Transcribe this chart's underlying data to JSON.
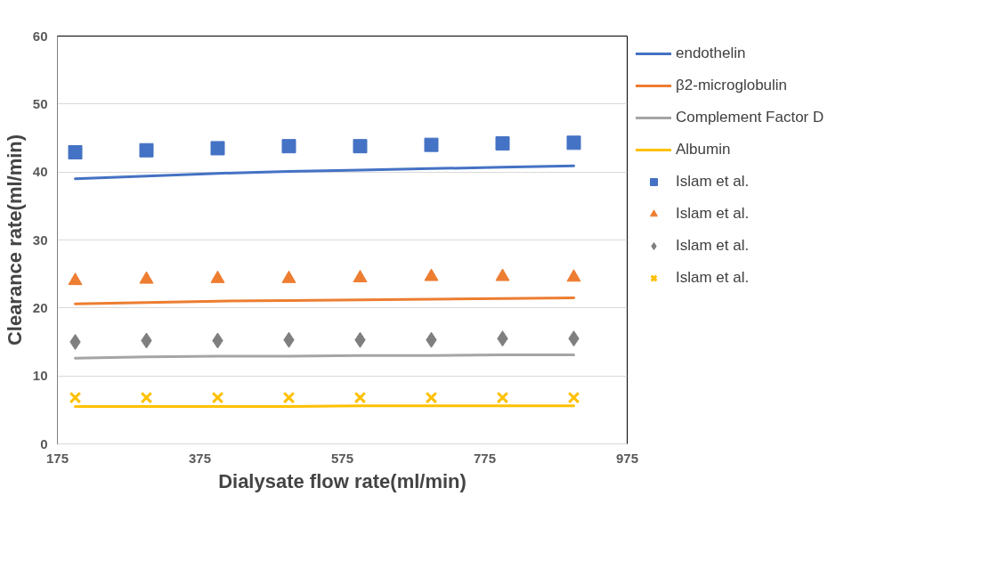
{
  "chart_data": {
    "type": "line",
    "xlabel": "Dialysate flow rate(ml/min)",
    "ylabel": "Clearance rate(ml/min)",
    "x": [
      200,
      300,
      400,
      500,
      600,
      700,
      800,
      900
    ],
    "xlim": [
      175,
      975
    ],
    "xticks": [
      175,
      375,
      575,
      775,
      975
    ],
    "ylim": [
      0,
      60
    ],
    "yticks": [
      0,
      10,
      20,
      30,
      40,
      50,
      60
    ],
    "grid": "y",
    "legend": "right",
    "marker": "none",
    "line_style": "solid",
    "series": [
      {
        "name": "endothelin",
        "color": "#4472c4",
        "values": [
          39.0,
          39.4,
          39.8,
          40.1,
          40.3,
          40.5,
          40.7,
          40.9
        ]
      },
      {
        "name": "β2-microglobulin",
        "color": "#ed7d31",
        "values": [
          20.6,
          20.8,
          21.0,
          21.1,
          21.2,
          21.3,
          21.4,
          21.5
        ]
      },
      {
        "name": "Complement Factor D",
        "color": "#a5a5a5",
        "values": [
          12.6,
          12.8,
          12.9,
          12.9,
          13.0,
          13.0,
          13.1,
          13.1
        ]
      },
      {
        "name": "Albumin",
        "color": "#ffc000",
        "values": [
          5.5,
          5.5,
          5.5,
          5.5,
          5.6,
          5.6,
          5.6,
          5.6
        ]
      },
      {
        "name": "Islam et al.",
        "color": "#4472c4",
        "type": "scatter",
        "marker": "square",
        "values": [
          42.9,
          43.2,
          43.5,
          43.8,
          43.8,
          44.0,
          44.2,
          44.3
        ]
      },
      {
        "name": "Islam et al.",
        "color": "#ed7d31",
        "type": "scatter",
        "marker": "triangle",
        "values": [
          24.0,
          24.2,
          24.3,
          24.3,
          24.4,
          24.6,
          24.6,
          24.5
        ]
      },
      {
        "name": "Islam et al.",
        "color": "#7f7f7f",
        "type": "scatter",
        "marker": "diamond",
        "values": [
          15.0,
          15.2,
          15.2,
          15.3,
          15.3,
          15.3,
          15.5,
          15.5
        ]
      },
      {
        "name": "Islam et al.",
        "color": "#ffc000",
        "type": "scatter",
        "marker": "cross",
        "values": [
          6.8,
          6.8,
          6.8,
          6.8,
          6.8,
          6.8,
          6.8,
          6.8
        ]
      }
    ]
  }
}
